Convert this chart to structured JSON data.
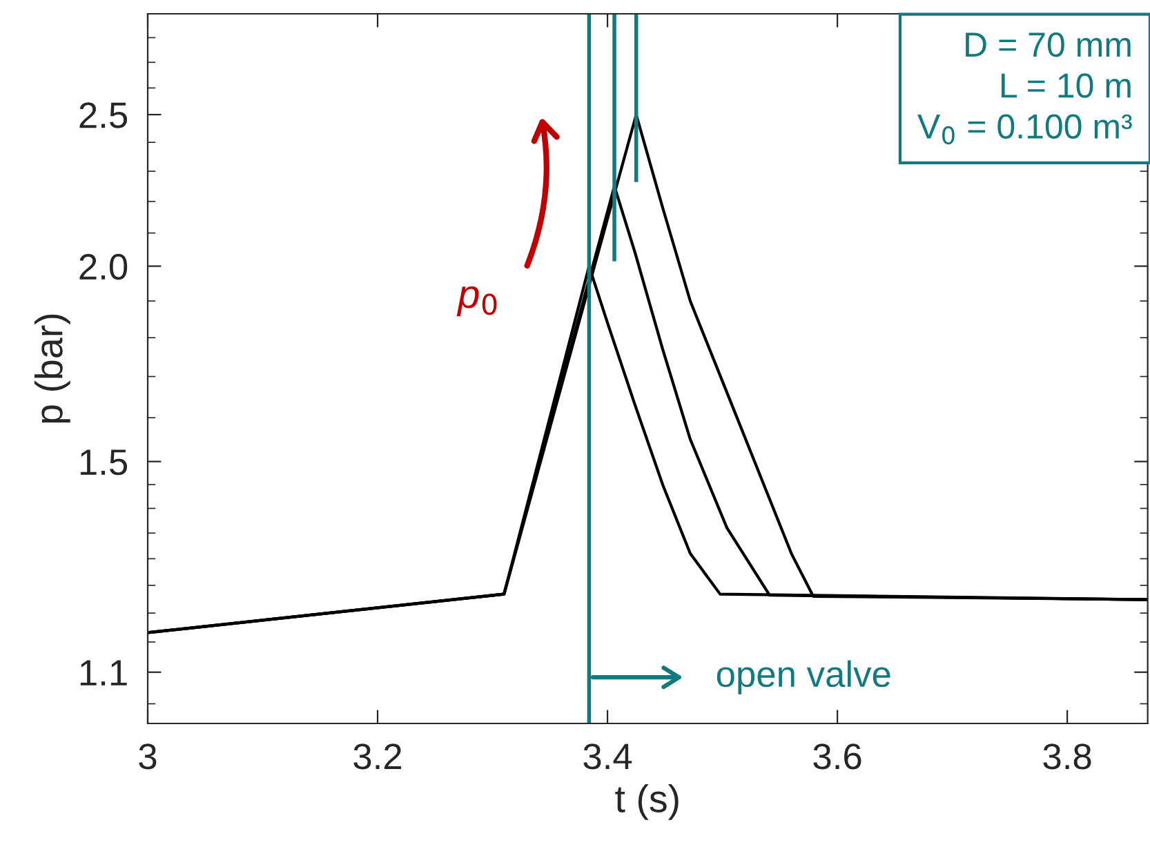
{
  "chart_data": {
    "type": "line",
    "xlabel": "t (s)",
    "ylabel": "p (bar)",
    "log": "y",
    "xlim": [
      3,
      3.87
    ],
    "ylim": [
      1.02,
      2.9
    ],
    "xticks": [
      3,
      3.2,
      3.4,
      3.6,
      3.8
    ],
    "yticks": [
      {
        "value": 1.05,
        "label": null
      },
      {
        "value": 1.1,
        "label": "1.1"
      },
      {
        "value": 1.15,
        "label": null
      },
      {
        "value": 1.2,
        "label": null
      },
      {
        "value": 1.25,
        "label": null
      },
      {
        "value": 1.3,
        "label": null
      },
      {
        "value": 1.35,
        "label": null
      },
      {
        "value": 1.4,
        "label": null
      },
      {
        "value": 1.45,
        "label": null
      },
      {
        "value": 1.5,
        "label": "1.5"
      },
      {
        "value": 1.6,
        "label": null
      },
      {
        "value": 1.7,
        "label": null
      },
      {
        "value": 1.8,
        "label": null
      },
      {
        "value": 1.9,
        "label": null
      },
      {
        "value": 2,
        "label": "2.0"
      },
      {
        "value": 2.1,
        "label": null
      },
      {
        "value": 2.2,
        "label": null
      },
      {
        "value": 2.3,
        "label": null
      },
      {
        "value": 2.4,
        "label": null
      },
      {
        "value": 2.5,
        "label": "2.5"
      },
      {
        "value": 2.6,
        "label": null
      },
      {
        "value": 2.7,
        "label": null
      },
      {
        "value": 2.8,
        "label": null
      }
    ],
    "grid": false,
    "legend": false,
    "marker": "none",
    "line_style": "solid",
    "series": [
      {
        "color": "#000000",
        "x": [
          3,
          3.31,
          3.384,
          3.4,
          3.424,
          3.448,
          3.472,
          3.498,
          3.87
        ],
        "values": [
          1.166,
          1.234,
          2.0,
          1.84,
          1.63,
          1.45,
          1.31,
          1.234,
          1.224
        ]
      },
      {
        "color": "#000000",
        "x": [
          3,
          3.31,
          3.406,
          3.424,
          3.448,
          3.472,
          3.504,
          3.541,
          3.87
        ],
        "values": [
          1.166,
          1.234,
          2.25,
          2.04,
          1.77,
          1.55,
          1.36,
          1.232,
          1.224
        ]
      },
      {
        "color": "#000000",
        "x": [
          3,
          3.31,
          3.425,
          3.448,
          3.472,
          3.504,
          3.536,
          3.56,
          3.579,
          3.87
        ],
        "values": [
          1.166,
          1.234,
          2.5,
          2.18,
          1.9,
          1.66,
          1.45,
          1.31,
          1.23,
          1.224
        ]
      },
      {
        "color": "#117a80",
        "x": [
          3.406,
          3.406
        ],
        "values": [
          2.02,
          2.9
        ]
      },
      {
        "color": "#117a80",
        "x": [
          3.425,
          3.425
        ],
        "values": [
          2.27,
          2.9
        ]
      }
    ],
    "ref_lines": [
      {
        "axis": "x",
        "value": 3.384,
        "label": "open valve",
        "color": "#117a80"
      }
    ],
    "annotations": [
      "p$_{0}$",
      "D = 70 mm",
      "L = 10 m",
      "V$_{0}$ = 0.100 m³"
    ]
  }
}
